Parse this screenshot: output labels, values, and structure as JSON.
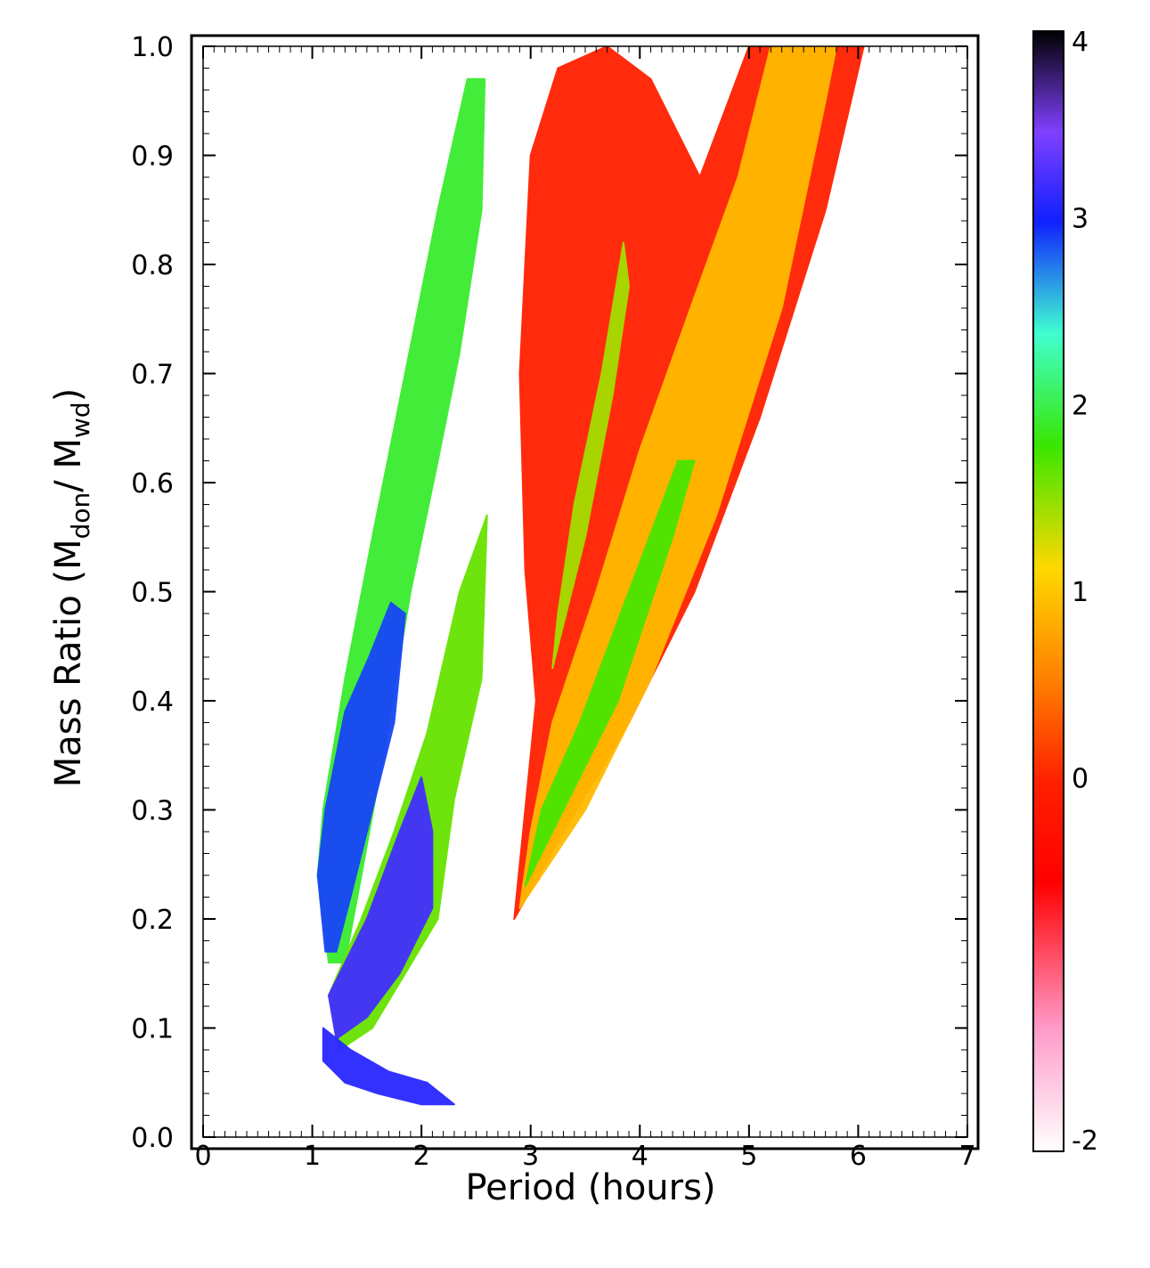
{
  "chart_data": {
    "type": "heatmap",
    "title": "",
    "xlabel": "Period (hours)",
    "ylabel_parts": {
      "main": "Mass Ratio (M",
      "sub1": "don",
      "mid": "/ M",
      "sub2": "wd",
      "end": ")"
    },
    "xlim": [
      0,
      7
    ],
    "ylim": [
      0,
      1
    ],
    "x_ticks": [
      "0",
      "1",
      "2",
      "3",
      "4",
      "5",
      "6",
      "7"
    ],
    "y_ticks": [
      "0.0",
      "0.1",
      "0.2",
      "0.3",
      "0.4",
      "0.5",
      "0.6",
      "0.7",
      "0.8",
      "0.9",
      "1.0"
    ],
    "colorbar": {
      "range": [
        -2,
        4
      ],
      "ticks": [
        "-2",
        "0",
        "1",
        "2",
        "3",
        "4"
      ],
      "colors": [
        "#ffffff",
        "#ff9ac8",
        "#ff0000",
        "#ff7f00",
        "#ffd800",
        "#39e600",
        "#40ffd0",
        "#1020ff",
        "#8040ff",
        "#000000"
      ]
    },
    "regions": [
      {
        "name": "upper-left-band",
        "value": 1.9,
        "polygon": [
          [
            1.05,
            0.24
          ],
          [
            1.1,
            0.3
          ],
          [
            1.3,
            0.42
          ],
          [
            1.55,
            0.55
          ],
          [
            1.85,
            0.7
          ],
          [
            2.15,
            0.85
          ],
          [
            2.42,
            0.97
          ],
          [
            2.58,
            0.97
          ],
          [
            2.55,
            0.85
          ],
          [
            2.35,
            0.72
          ],
          [
            2.15,
            0.62
          ],
          [
            1.9,
            0.5
          ],
          [
            1.65,
            0.35
          ],
          [
            1.45,
            0.24
          ],
          [
            1.3,
            0.16
          ],
          [
            1.15,
            0.16
          ]
        ]
      },
      {
        "name": "upper-left-band-core",
        "value": 2.9,
        "polygon": [
          [
            1.05,
            0.24
          ],
          [
            1.12,
            0.3
          ],
          [
            1.3,
            0.39
          ],
          [
            1.52,
            0.44
          ],
          [
            1.72,
            0.49
          ],
          [
            1.85,
            0.48
          ],
          [
            1.75,
            0.38
          ],
          [
            1.55,
            0.3
          ],
          [
            1.35,
            0.22
          ],
          [
            1.22,
            0.17
          ],
          [
            1.12,
            0.17
          ]
        ]
      },
      {
        "name": "middle-band",
        "value": 1.6,
        "polygon": [
          [
            1.15,
            0.13
          ],
          [
            1.45,
            0.2
          ],
          [
            1.75,
            0.28
          ],
          [
            2.05,
            0.37
          ],
          [
            2.35,
            0.5
          ],
          [
            2.6,
            0.57
          ],
          [
            2.55,
            0.42
          ],
          [
            2.3,
            0.31
          ],
          [
            2.15,
            0.2
          ],
          [
            1.85,
            0.15
          ],
          [
            1.55,
            0.1
          ],
          [
            1.25,
            0.08
          ]
        ]
      },
      {
        "name": "middle-band-core",
        "value": 3.2,
        "polygon": [
          [
            1.15,
            0.13
          ],
          [
            1.5,
            0.2
          ],
          [
            1.8,
            0.28
          ],
          [
            2.0,
            0.33
          ],
          [
            2.1,
            0.28
          ],
          [
            2.1,
            0.21
          ],
          [
            1.8,
            0.15
          ],
          [
            1.5,
            0.11
          ],
          [
            1.22,
            0.09
          ]
        ]
      },
      {
        "name": "lower-hook",
        "value": 3.1,
        "polygon": [
          [
            1.1,
            0.1
          ],
          [
            1.35,
            0.08
          ],
          [
            1.7,
            0.06
          ],
          [
            2.05,
            0.05
          ],
          [
            2.3,
            0.03
          ],
          [
            2.0,
            0.03
          ],
          [
            1.6,
            0.04
          ],
          [
            1.3,
            0.05
          ],
          [
            1.1,
            0.07
          ]
        ]
      },
      {
        "name": "right-fan-outer",
        "value": 0.0,
        "polygon": [
          [
            2.85,
            0.2
          ],
          [
            3.3,
            0.28
          ],
          [
            3.9,
            0.38
          ],
          [
            4.5,
            0.5
          ],
          [
            5.1,
            0.66
          ],
          [
            5.7,
            0.85
          ],
          [
            6.05,
            1.0
          ],
          [
            5.0,
            1.0
          ],
          [
            4.55,
            0.88
          ],
          [
            4.1,
            0.97
          ],
          [
            3.7,
            1.0
          ],
          [
            3.25,
            0.98
          ],
          [
            3.0,
            0.9
          ],
          [
            2.9,
            0.7
          ],
          [
            2.95,
            0.52
          ],
          [
            3.05,
            0.4
          ],
          [
            2.95,
            0.3
          ]
        ]
      },
      {
        "name": "right-fan-inner",
        "value": 0.9,
        "polygon": [
          [
            2.9,
            0.21
          ],
          [
            3.5,
            0.3
          ],
          [
            4.1,
            0.42
          ],
          [
            4.7,
            0.57
          ],
          [
            5.3,
            0.76
          ],
          [
            5.7,
            0.95
          ],
          [
            5.8,
            1.0
          ],
          [
            5.2,
            1.0
          ],
          [
            4.9,
            0.88
          ],
          [
            4.5,
            0.77
          ],
          [
            4.0,
            0.63
          ],
          [
            3.6,
            0.5
          ],
          [
            3.2,
            0.38
          ],
          [
            3.0,
            0.28
          ]
        ]
      },
      {
        "name": "right-fan-core",
        "value": 1.7,
        "polygon": [
          [
            2.95,
            0.23
          ],
          [
            3.3,
            0.3
          ],
          [
            3.8,
            0.4
          ],
          [
            4.3,
            0.55
          ],
          [
            4.5,
            0.62
          ],
          [
            4.35,
            0.62
          ],
          [
            3.9,
            0.5
          ],
          [
            3.45,
            0.38
          ],
          [
            3.1,
            0.3
          ]
        ]
      },
      {
        "name": "right-fan-spike",
        "value": 1.4,
        "polygon": [
          [
            3.2,
            0.43
          ],
          [
            3.5,
            0.55
          ],
          [
            3.75,
            0.68
          ],
          [
            3.9,
            0.78
          ],
          [
            3.85,
            0.82
          ],
          [
            3.65,
            0.7
          ],
          [
            3.4,
            0.58
          ],
          [
            3.25,
            0.48
          ]
        ]
      }
    ]
  }
}
